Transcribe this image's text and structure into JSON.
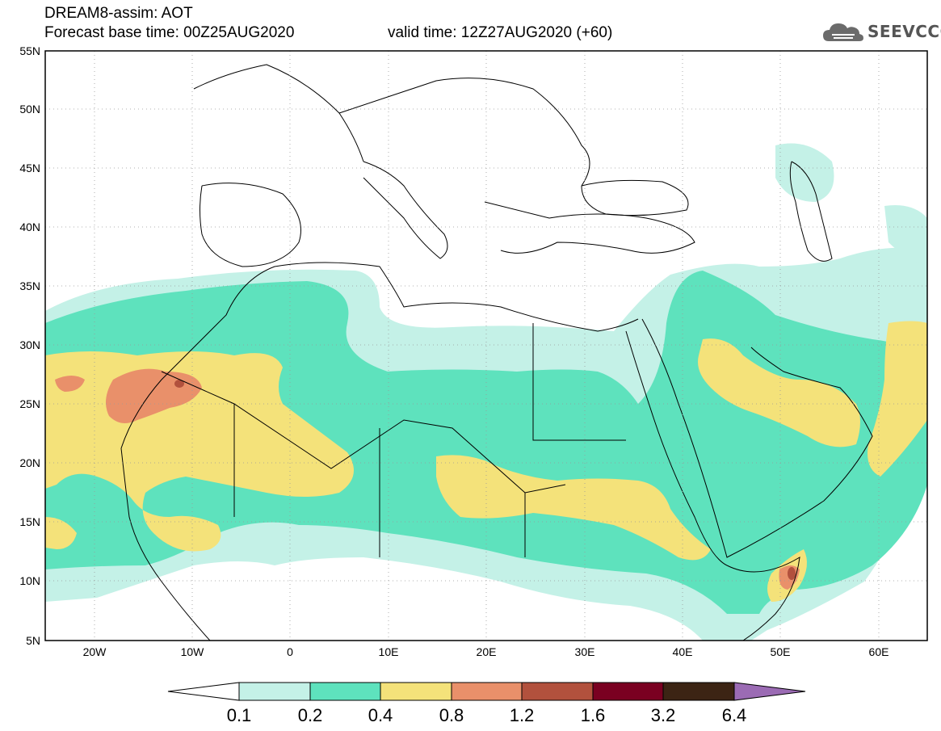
{
  "header": {
    "title_line1": "DREAM8-assim: AOT",
    "title_line2": "Forecast base time: 00Z25AUG2020",
    "valid_time": "valid time: 12Z27AUG2020 (+60)"
  },
  "logo": {
    "text": "SEEVCCC",
    "icon": "cloud-icon"
  },
  "map": {
    "lon_range": [
      -25,
      65
    ],
    "lat_range": [
      5,
      55
    ],
    "lat_labels": [
      "5N",
      "10N",
      "15N",
      "20N",
      "25N",
      "30N",
      "35N",
      "40N",
      "45N",
      "50N",
      "55N"
    ],
    "lon_labels": [
      "20W",
      "10W",
      "0",
      "10E",
      "20E",
      "30E",
      "40E",
      "50E",
      "60E"
    ]
  },
  "colorbar": {
    "labels": [
      "0.1",
      "0.2",
      "0.4",
      "0.8",
      "1.2",
      "1.6",
      "3.2",
      "6.4"
    ],
    "colors": [
      "#ffffff",
      "#c4f1e7",
      "#5ee2bd",
      "#f4e27a",
      "#e9906a",
      "#b2513d",
      "#7a0021",
      "#3c2414",
      "#9b6bb4"
    ]
  },
  "fill_colors": {
    "c1": "#c4f1e7",
    "c2": "#5ee2bd",
    "c3": "#f4e27a",
    "c4": "#e9906a",
    "c5": "#b2513d"
  }
}
